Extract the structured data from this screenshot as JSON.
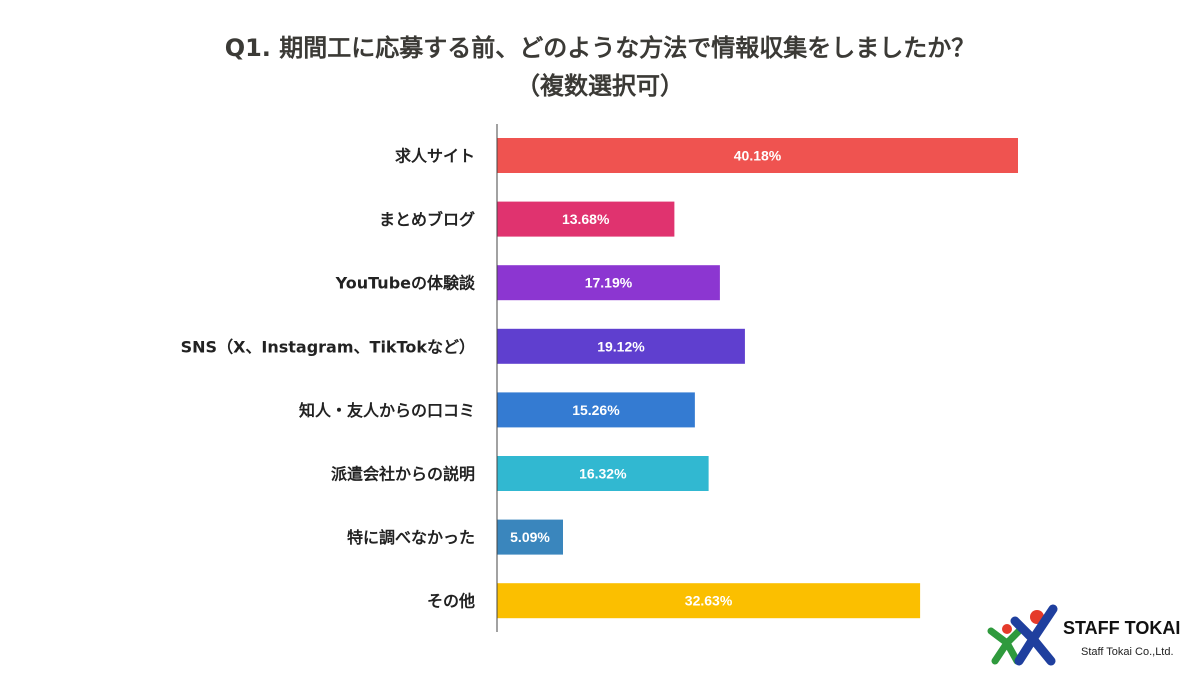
{
  "chart_data": {
    "type": "bar",
    "orientation": "horizontal",
    "title": "Q1. 期間工に応募する前、どのような方法で情報収集をしましたか？",
    "subtitle": "（複数選択可）",
    "categories": [
      "求人サイト",
      "まとめブログ",
      "YouTubeの体験談",
      "SNS（X、Instagram、TikTokなど）",
      "知人・友人からの口コミ",
      "派遣会社からの説明",
      "特に調べなかった",
      "その他"
    ],
    "values": [
      40.18,
      13.68,
      17.19,
      19.12,
      15.26,
      16.32,
      5.09,
      32.63
    ],
    "labels": [
      "40.18%",
      "13.68%",
      "17.19%",
      "19.12%",
      "15.26%",
      "16.32%",
      "5.09%",
      "32.63%"
    ],
    "colors": [
      "#ef5350",
      "#e0336f",
      "#8c36d1",
      "#5f3fcf",
      "#347bd2",
      "#31b8d1",
      "#3a86bd",
      "#fbbf00"
    ],
    "xlabel": "",
    "ylabel": "",
    "xlim": [
      0,
      40.18
    ],
    "grid": false
  },
  "logo": {
    "name": "STAFF TOKAI",
    "company": "Staff Tokai Co.,Ltd."
  }
}
